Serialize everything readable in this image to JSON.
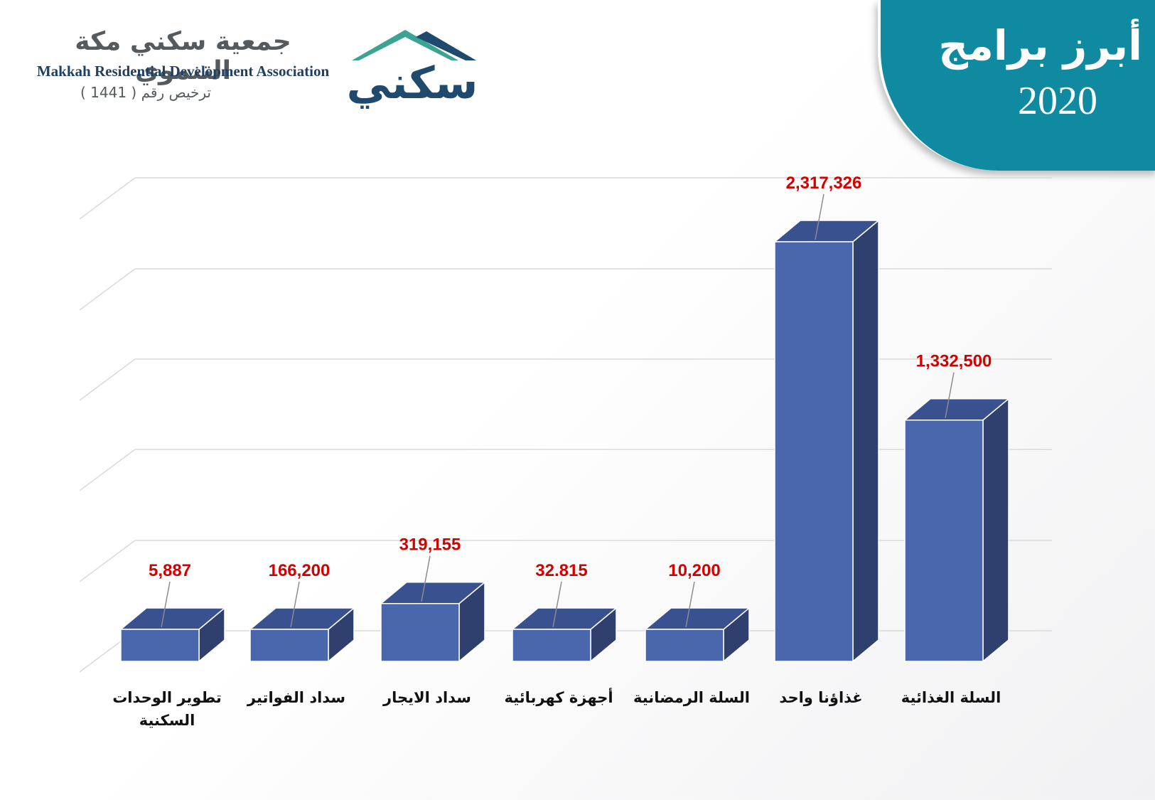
{
  "header": {
    "title": "أبرز برامج",
    "year": "2020"
  },
  "org": {
    "name_ar": "جمعية سكني مكة التنموي",
    "name_en": "Makkah Residential Development Association",
    "license": "ترخيص رقم ( 1441 )",
    "logo_text": "سكني",
    "colors": {
      "teal": "#3aa394",
      "navy": "#1f4a6e"
    }
  },
  "chart_data": {
    "type": "bar",
    "style": "3d-column",
    "title": "",
    "xlabel": "",
    "ylabel": "",
    "grid": true,
    "legend": "none",
    "categories": [
      "تطوير الوحدات السكنية",
      "سداد الفواتير",
      "سداد الايجار",
      "أجهزة كهربائية",
      "السلة الرمضانية",
      "غذاؤنا واحد",
      "السلة الغذائية"
    ],
    "values": [
      5887,
      166200,
      319155,
      32815,
      10200,
      2317326,
      1332500
    ],
    "data_labels": [
      "5,887",
      "166,200",
      "319,155",
      "32.815",
      "10,200",
      "2,317,326",
      "1,332,500"
    ],
    "colors": {
      "bar_front": "#4a66ad",
      "bar_side": "#2f406f",
      "bar_top": "#3a5190",
      "label": "#d40000",
      "grid": "#d9d9d9"
    }
  }
}
